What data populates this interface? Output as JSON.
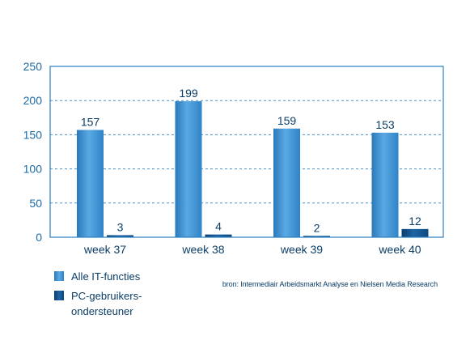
{
  "chart_data": {
    "type": "bar",
    "categories": [
      "week 37",
      "week 38",
      "week 39",
      "week 40"
    ],
    "series": [
      {
        "name": "Alle IT-functies",
        "values": [
          157,
          199,
          159,
          153
        ],
        "color": "#3a8fd1"
      },
      {
        "name": "PC-gebruikers-\nondersteuner",
        "values": [
          3,
          4,
          2,
          12
        ],
        "color": "#0e4f8a"
      }
    ],
    "ylim": [
      0,
      250
    ],
    "yticks": [
      0,
      50,
      100,
      150,
      200,
      250
    ],
    "grid": true,
    "legend_position": "bottom-left",
    "colors": {
      "axis": "#2b7fc0",
      "grid": "#4a90c8",
      "text": "#0b3d66",
      "tick": "#1b6aa8"
    }
  },
  "source": "bron: Intermediair Arbeidsmarkt Analyse en Nielsen Media Research"
}
